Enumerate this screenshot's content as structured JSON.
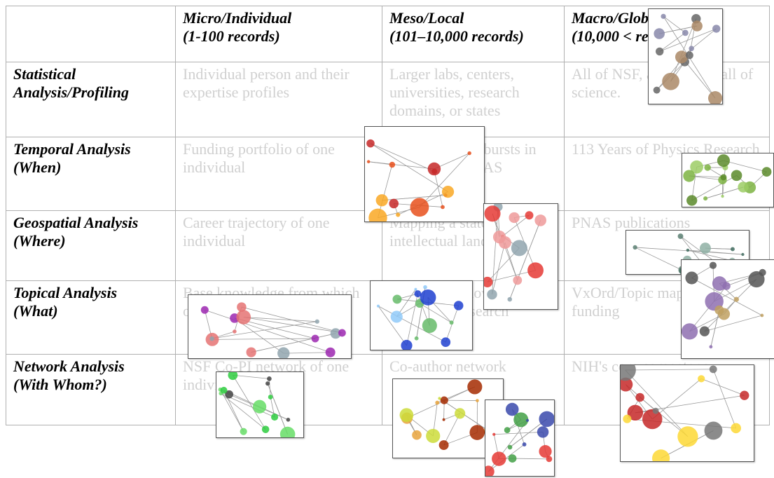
{
  "table": {
    "columns": [
      {
        "title": "Micro/Individual",
        "subtitle": "(1-100 records)"
      },
      {
        "title": "Meso/Local",
        "subtitle": "(101–10,000 records)"
      },
      {
        "title": "Macro/Global",
        "subtitle": "(10,000 < records)"
      }
    ],
    "rows": [
      {
        "title": "Statistical",
        "subtitle": "Analysis/Profiling",
        "cells": [
          "Individual person and their expertise profiles",
          "Larger labs, centers, universities, research domains, or states",
          "All of NSF, all of USA, all of science."
        ]
      },
      {
        "title": "Temporal Analysis",
        "subtitle": "(When)",
        "cells": [
          "Funding portfolio of one individual",
          "Mapping topic bursts in 20-years of PNAS",
          "113 Years of Physics Research"
        ]
      },
      {
        "title": "Geospatial Analysis",
        "subtitle": "(Where)",
        "cells": [
          "Career trajectory of one individual",
          "Mapping a states intellectual landscape",
          "PNAS publications"
        ]
      },
      {
        "title": "Topical Analysis",
        "subtitle": "(What)",
        "cells": [
          "Base knowledge from which one grant draws.",
          "Knowledge flows in Chemistry research",
          "VxOrd/Topic maps of NIH funding"
        ]
      },
      {
        "title": "Network Analysis",
        "subtitle": "(With Whom?)",
        "cells": [
          "NSF Co-PI network of one individual",
          "Co-author network",
          "NIH's core competency"
        ]
      }
    ]
  }
}
